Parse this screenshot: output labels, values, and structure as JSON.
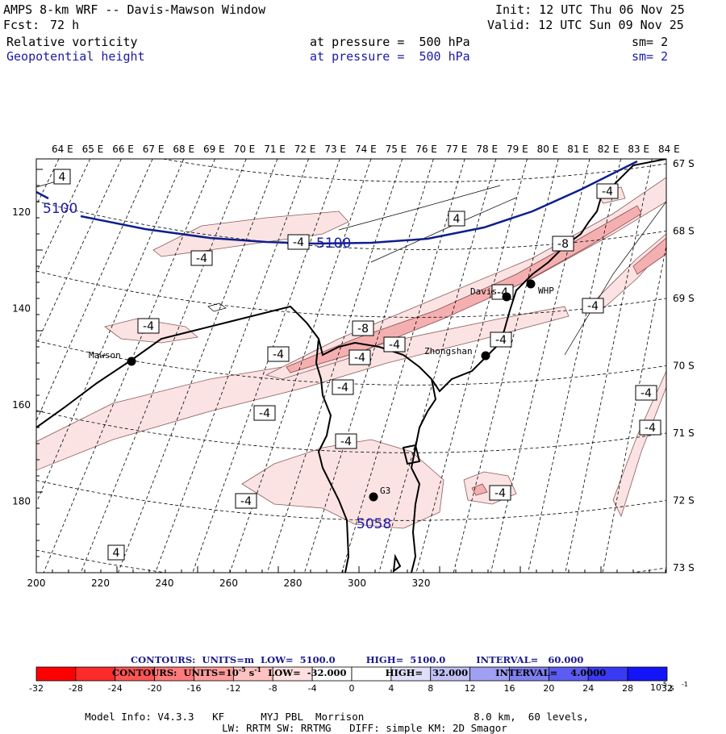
{
  "header": {
    "title": "AMPS 8-km WRF -- Davis-Mawson Window",
    "init": "Init: 12 UTC Thu 06 Nov 25",
    "fcst_label": "Fcst:",
    "fcst_value": "72 h",
    "valid": "Valid: 12 UTC Sun 09 Nov 25",
    "fields": [
      {
        "name": "Relative vorticity",
        "level": "at pressure =  500 hPa",
        "sm": "sm= 2",
        "color": "#000000"
      },
      {
        "name": "Geopotential height",
        "level": "at pressure =  500 hPa",
        "sm": "sm= 2",
        "color": "#1a1aa6"
      }
    ]
  },
  "map": {
    "top_lon_labels": [
      "64 E",
      "65 E",
      "66 E",
      "67 E",
      "68 E",
      "69 E",
      "70 E",
      "71 E",
      "72 E",
      "73 E",
      "74 E",
      "75 E",
      "76 E",
      "77 E",
      "78 E",
      "79 E",
      "80 E",
      "81 E",
      "82 E",
      "83 E",
      "84 E"
    ],
    "right_lat_labels": [
      "67 S",
      "68 S",
      "69 S",
      "70 S",
      "71 S",
      "72 S",
      "73 S"
    ],
    "x_ticks": [
      "200",
      "220",
      "240",
      "260",
      "280",
      "300",
      "320"
    ],
    "y_ticks": [
      "120",
      "140",
      "160",
      "180"
    ],
    "stations": [
      {
        "name": "Mawson"
      },
      {
        "name": "Davis"
      },
      {
        "name": "WHP"
      },
      {
        "name": "Zhongshan"
      },
      {
        "name": "G3"
      }
    ],
    "height_labels": [
      "5100",
      "5100",
      "5058"
    ],
    "vort_labels": [
      "4",
      "4",
      "-4",
      "-4",
      "-4",
      "-8",
      "-4",
      "-4",
      "-4",
      "-4",
      "-4",
      "-4",
      "-4",
      "-4",
      "-8",
      "-4",
      "-4",
      "-4",
      "-4",
      "-4",
      "-4",
      "4"
    ],
    "colors": {
      "height_contour": "#0d1f8c",
      "coast": "#000000",
      "pos_shade": "#fbe3e3",
      "mid_shade": "#f4b0b0"
    }
  },
  "colorbar": {
    "contour_line1": {
      "prefix": "CONTOURS:  UNITS=m  LOW=  5100.0",
      "high": "HIGH=  5100.0",
      "interval": "INTERVAL=   60.000"
    },
    "contour_line2": {
      "prefix": "CONTOURS:  UNITS=10",
      "exp": "-5",
      "unit": " s",
      "unit_exp": "-1",
      "low": "  LOW=  -32.000",
      "high": "HIGH=   32.000",
      "interval": "INTERVAL=    4.0000"
    },
    "levels": [
      "-32",
      "-28",
      "-24",
      "-20",
      "-16",
      "-12",
      "-8",
      "-4",
      "0",
      "4",
      "8",
      "12",
      "16",
      "20",
      "24",
      "28",
      "32"
    ],
    "colors": [
      "#ff0000",
      "#ff2a2a",
      "#ff5555",
      "#ff7a7a",
      "#ff9d9d",
      "#ffc2c2",
      "#ffe0e0",
      "#ffffff",
      "#ffffff",
      "#dfdff9",
      "#c0c0f5",
      "#a0a0f2",
      "#7f7ff0",
      "#5c5cf2",
      "#3a3af4",
      "#1414f8"
    ],
    "unit_label": "10",
    "unit_exp": "-5",
    "unit_s": " s",
    "unit_s_exp": "-1"
  },
  "footer": {
    "line1_left": "Model Info: V4.3.3   KF      MYJ PBL  Morrison",
    "line1_right": "8.0 km,  60 levels,",
    "line2": "LW: RRTM SW: RRTMG   DIFF: simple KM: 2D Smagor"
  }
}
